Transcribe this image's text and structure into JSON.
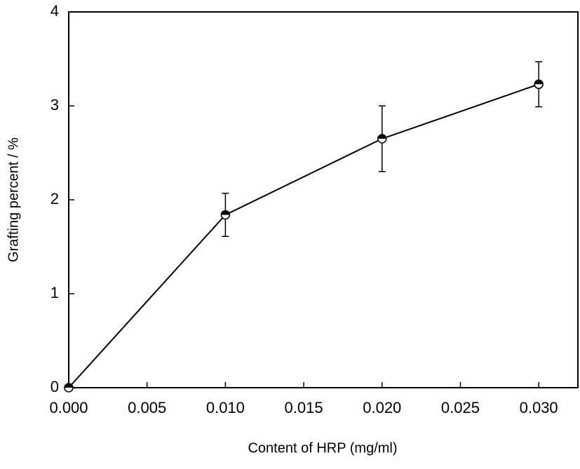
{
  "chart_data": {
    "type": "line",
    "x_label": "Content of HRP (mg/ml)",
    "y_label": "Grafting percent / %",
    "x": [
      0,
      0.01,
      0.02,
      0.03
    ],
    "series": [
      {
        "color": "#000000",
        "values": [
          0,
          1.84,
          2.65,
          3.23
        ],
        "errors": [
          null,
          0.23,
          0.35,
          0.24
        ]
      }
    ],
    "xlim": [
      0,
      0.0325
    ],
    "ylim": [
      0,
      4
    ],
    "xticks": [
      {
        "value": 0,
        "label": "0.000"
      },
      {
        "value": 0.005,
        "label": "0.005"
      },
      {
        "value": 0.01,
        "label": "0.010"
      },
      {
        "value": 0.015,
        "label": "0.015"
      },
      {
        "value": 0.02,
        "label": "0.020"
      },
      {
        "value": 0.025,
        "label": "0.025"
      },
      {
        "value": 0.03,
        "label": "0.030"
      }
    ],
    "yticks": [
      0,
      1,
      2,
      3,
      4
    ]
  }
}
